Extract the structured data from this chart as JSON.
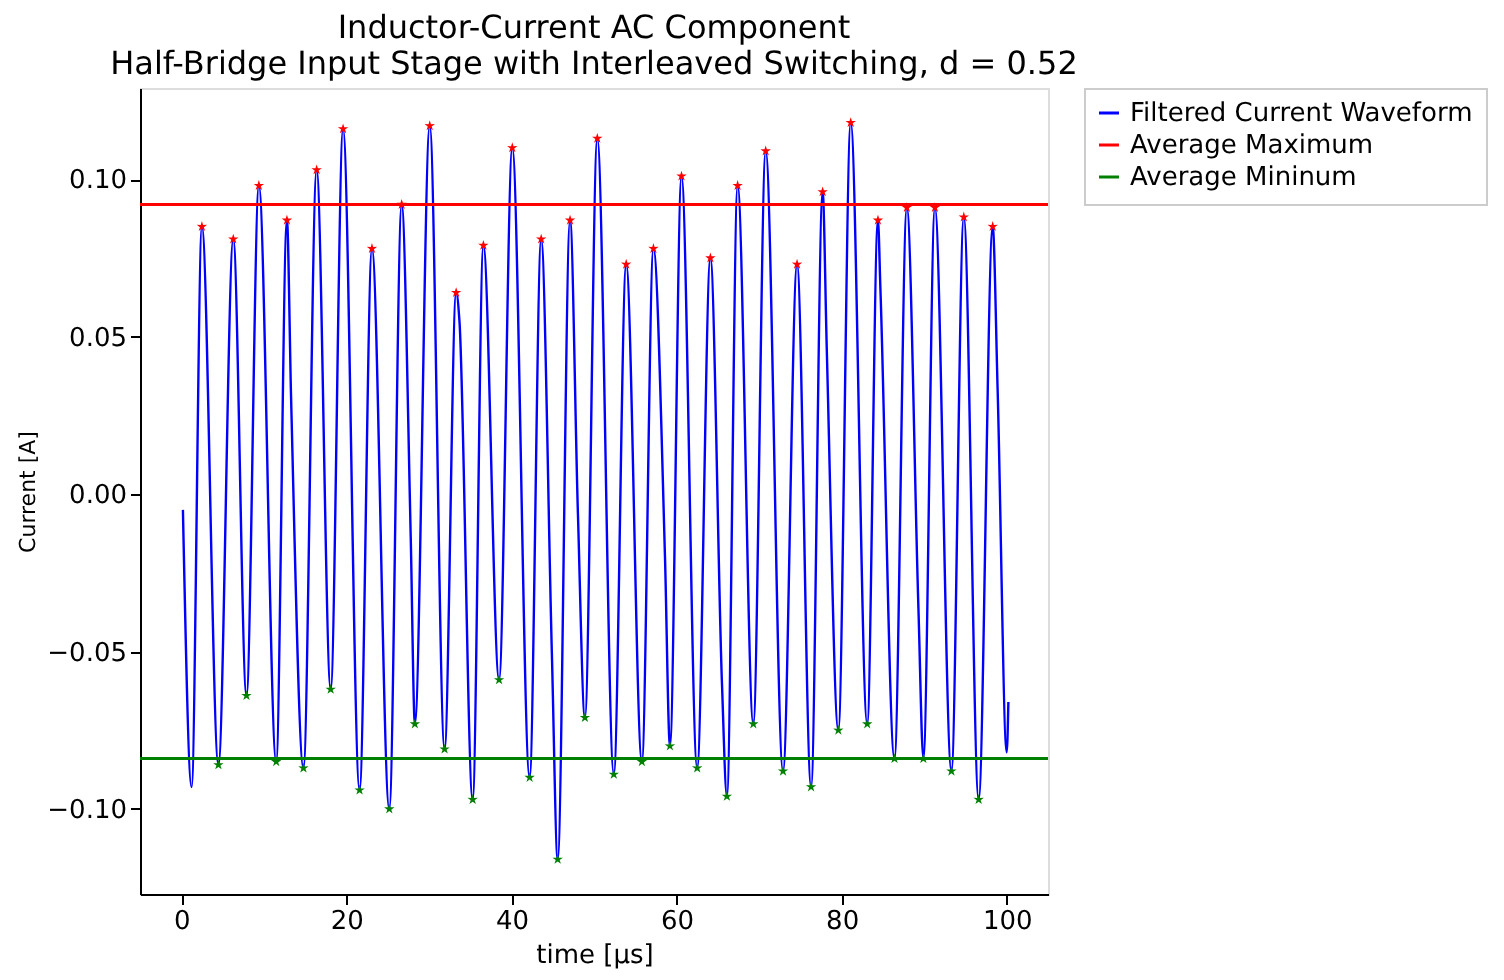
{
  "chart_data": {
    "type": "line",
    "title": "Inductor-Current AC Component",
    "subtitle": "Half-Bridge Input Stage with Interleaved Switching, d = 0.52",
    "xlabel": "time [μs]",
    "ylabel": "Current [A]",
    "xlim": [
      -5,
      105
    ],
    "ylim": [
      -0.127,
      0.129
    ],
    "xticks": [
      0,
      20,
      40,
      60,
      80,
      100
    ],
    "yticks": [
      {
        "value": -0.1,
        "label": "−0.10"
      },
      {
        "value": -0.05,
        "label": "−0.05"
      },
      {
        "value": 0,
        "label": "0.00"
      },
      {
        "value": 0.05,
        "label": "0.05"
      },
      {
        "value": 0.1,
        "label": "0.10"
      }
    ],
    "grid": false,
    "legend": "right",
    "series": [
      {
        "name": "Filtered Current Waveform",
        "color": "#0000ff",
        "line_style": "solid",
        "x": [
          0.2,
          1.25,
          2.5,
          4.5,
          6.3,
          7.9,
          9.4,
          11.5,
          12.8,
          13.3,
          14.8,
          16.4,
          18.1,
          19.6,
          21.6,
          23.1,
          25.2,
          26.7,
          27.8,
          28.3,
          30.1,
          31.9,
          33.3,
          33.7,
          35.3,
          36.6,
          38.5,
          40.1,
          42.2,
          43.6,
          44.9,
          45.6,
          47.1,
          48.05,
          48.9,
          50.4,
          52.4,
          53.9,
          55.8,
          57.2,
          58.6,
          59.2,
          60.6,
          62.5,
          64.1,
          65.5,
          66.1,
          67.4,
          69.3,
          70.8,
          72.9,
          74.6,
          76.3,
          77.7,
          78.2,
          79.6,
          81.1,
          83.1,
          84.4,
          84.7,
          86.4,
          87.9,
          89.3,
          89.9,
          91.3,
          93.3,
          94.8,
          96.6,
          98.3,
          98.9,
          100.0,
          100.2
        ],
        "values": [
          -0.005,
          -0.093,
          0.085,
          -0.086,
          0.081,
          -0.064,
          0.098,
          -0.085,
          0.087,
          0.031,
          -0.087,
          0.103,
          -0.062,
          0.116,
          -0.094,
          0.078,
          -0.1,
          0.092,
          -0.014,
          -0.073,
          0.117,
          -0.081,
          0.064,
          0.055,
          -0.097,
          0.079,
          -0.059,
          0.11,
          -0.09,
          0.081,
          -0.051,
          -0.116,
          0.087,
          -0.006,
          -0.071,
          0.113,
          -0.089,
          0.073,
          -0.085,
          0.078,
          -0.02,
          -0.08,
          0.101,
          -0.087,
          0.075,
          -0.06,
          -0.096,
          0.098,
          -0.073,
          0.109,
          -0.088,
          0.073,
          -0.093,
          0.096,
          0.046,
          -0.075,
          0.118,
          -0.073,
          0.087,
          0.065,
          -0.084,
          0.091,
          -0.036,
          -0.084,
          0.091,
          -0.088,
          0.088,
          -0.097,
          0.085,
          0.033,
          -0.082,
          -0.066
        ]
      },
      {
        "type": "scatter",
        "marker": "star",
        "color": "#ff0000",
        "x": [
          2.5,
          6.3,
          9.4,
          12.8,
          16.4,
          19.6,
          23.1,
          26.7,
          30.1,
          33.3,
          36.6,
          40.1,
          43.6,
          47.1,
          50.4,
          53.9,
          57.2,
          60.6,
          64.1,
          67.4,
          70.8,
          74.6,
          77.7,
          81.1,
          84.4,
          87.9,
          91.3,
          94.8,
          98.3
        ],
        "values": [
          0.085,
          0.081,
          0.098,
          0.087,
          0.103,
          0.116,
          0.078,
          0.092,
          0.117,
          0.064,
          0.079,
          0.11,
          0.081,
          0.087,
          0.113,
          0.073,
          0.078,
          0.101,
          0.075,
          0.098,
          0.109,
          0.073,
          0.096,
          0.118,
          0.087,
          0.091,
          0.091,
          0.088,
          0.085
        ]
      },
      {
        "type": "scatter",
        "marker": "star",
        "color": "#008000",
        "x": [
          4.5,
          7.9,
          11.5,
          14.8,
          18.1,
          21.6,
          25.2,
          28.3,
          31.9,
          35.3,
          38.5,
          42.2,
          45.6,
          48.9,
          52.4,
          55.8,
          59.2,
          62.5,
          66.1,
          69.3,
          72.9,
          76.3,
          79.6,
          83.1,
          86.4,
          89.9,
          93.3,
          96.6
        ],
        "values": [
          -0.086,
          -0.064,
          -0.085,
          -0.087,
          -0.062,
          -0.094,
          -0.1,
          -0.073,
          -0.081,
          -0.097,
          -0.059,
          -0.09,
          -0.116,
          -0.071,
          -0.089,
          -0.085,
          -0.08,
          -0.087,
          -0.096,
          -0.073,
          -0.088,
          -0.093,
          -0.075,
          -0.073,
          -0.084,
          -0.084,
          -0.088,
          -0.097
        ]
      }
    ],
    "ref_lines": [
      {
        "axis": "y",
        "value": 0.092,
        "label": "Average Maximum",
        "color": "#ff0000",
        "line_style": "solid"
      },
      {
        "axis": "y",
        "value": -0.084,
        "label": "Average Mininum",
        "color": "#008000",
        "line_style": "solid"
      }
    ]
  }
}
